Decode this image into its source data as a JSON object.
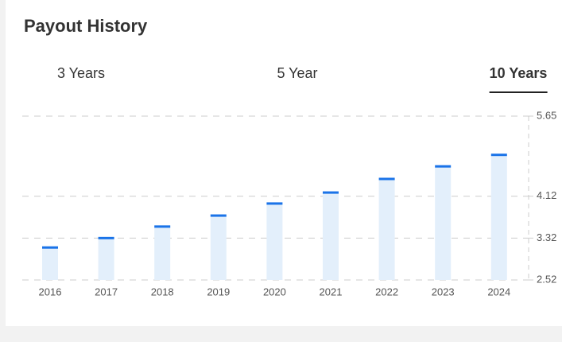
{
  "header": {
    "title": "Payout History"
  },
  "tabs": [
    "3 Years",
    "5 Year",
    "10 Years"
  ],
  "active_tab": 2,
  "chart_data": {
    "type": "bar",
    "categories": [
      "2016",
      "2017",
      "2018",
      "2019",
      "2020",
      "2021",
      "2022",
      "2023",
      "2024"
    ],
    "values": [
      3.14,
      3.32,
      3.54,
      3.75,
      3.98,
      4.19,
      4.45,
      4.69,
      4.91
    ],
    "color": "#e3effb",
    "cap_color": "#1a73e8",
    "ylim": [
      2.52,
      5.65
    ],
    "yticks": [
      2.52,
      3.32,
      4.12,
      5.65
    ],
    "grid": true
  }
}
